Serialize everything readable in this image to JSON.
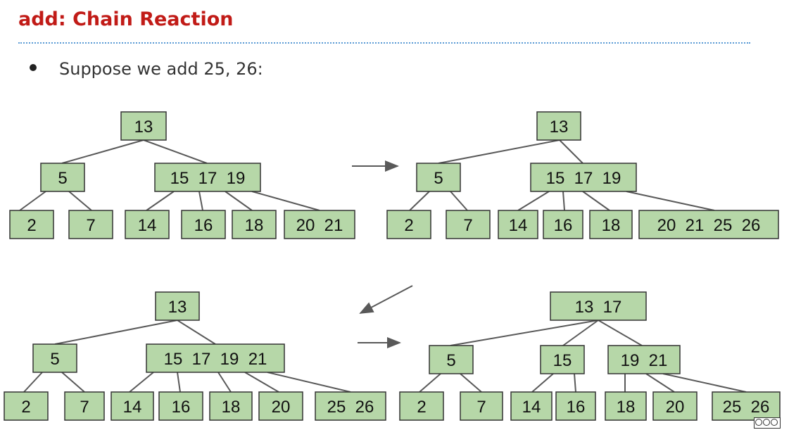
{
  "slide": {
    "title": "add: Chain Reaction",
    "bullet": "Suppose we add 25, 26:"
  },
  "colors": {
    "title": "#c11b17",
    "node_fill": "#b6d7a8",
    "rule": "#5b9bd5"
  },
  "icons": {
    "license": "cc-by-nc-sa-icon"
  },
  "trees": [
    {
      "name": "tree-1",
      "root": "13",
      "level1": [
        "5",
        "15  17  19"
      ],
      "leaves": [
        "2",
        "7",
        "14",
        "16",
        "18",
        "20  21"
      ]
    },
    {
      "name": "tree-2",
      "root": "13",
      "level1": [
        "5",
        "15  17  19"
      ],
      "leaves": [
        "2",
        "7",
        "14",
        "16",
        "18",
        "20  21  25  26"
      ]
    },
    {
      "name": "tree-3",
      "root": "13",
      "level1": [
        "5",
        "15  17  19  21"
      ],
      "leaves": [
        "2",
        "7",
        "14",
        "16",
        "18",
        "20",
        "25  26"
      ]
    },
    {
      "name": "tree-4",
      "root": "13  17",
      "level1": [
        "5",
        "15",
        "19  21"
      ],
      "leaves": [
        "2",
        "7",
        "14",
        "16",
        "18",
        "20",
        "25  26"
      ]
    }
  ]
}
